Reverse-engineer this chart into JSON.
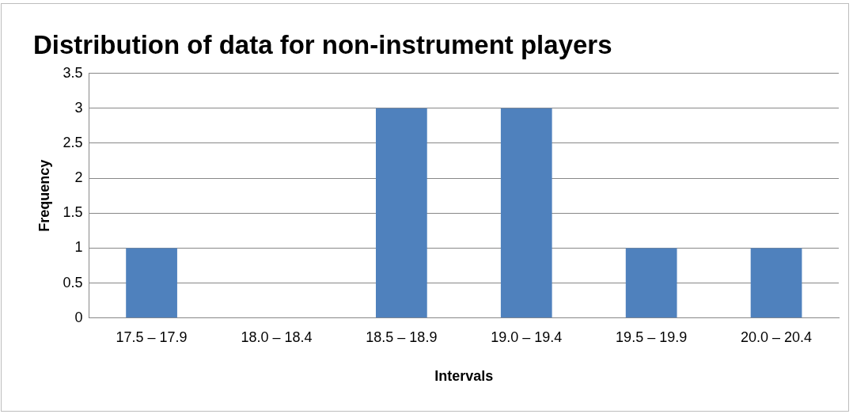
{
  "chart_data": {
    "type": "bar",
    "title": "Distribution of data for non-instrument players",
    "xlabel": "Intervals",
    "ylabel": "Frequency",
    "categories": [
      "17.5 – 17.9",
      "18.0 – 18.4",
      "18.5 – 18.9",
      "19.0 – 19.4",
      "19.5 – 19.9",
      "20.0 – 20.4"
    ],
    "values": [
      1,
      0,
      3,
      3,
      1,
      1
    ],
    "color": "#4f81bd",
    "ylim": [
      0,
      3.5
    ],
    "yticks": [
      0,
      0.5,
      1,
      1.5,
      2,
      2.5,
      3,
      3.5
    ],
    "grid": "y",
    "legend": false
  }
}
